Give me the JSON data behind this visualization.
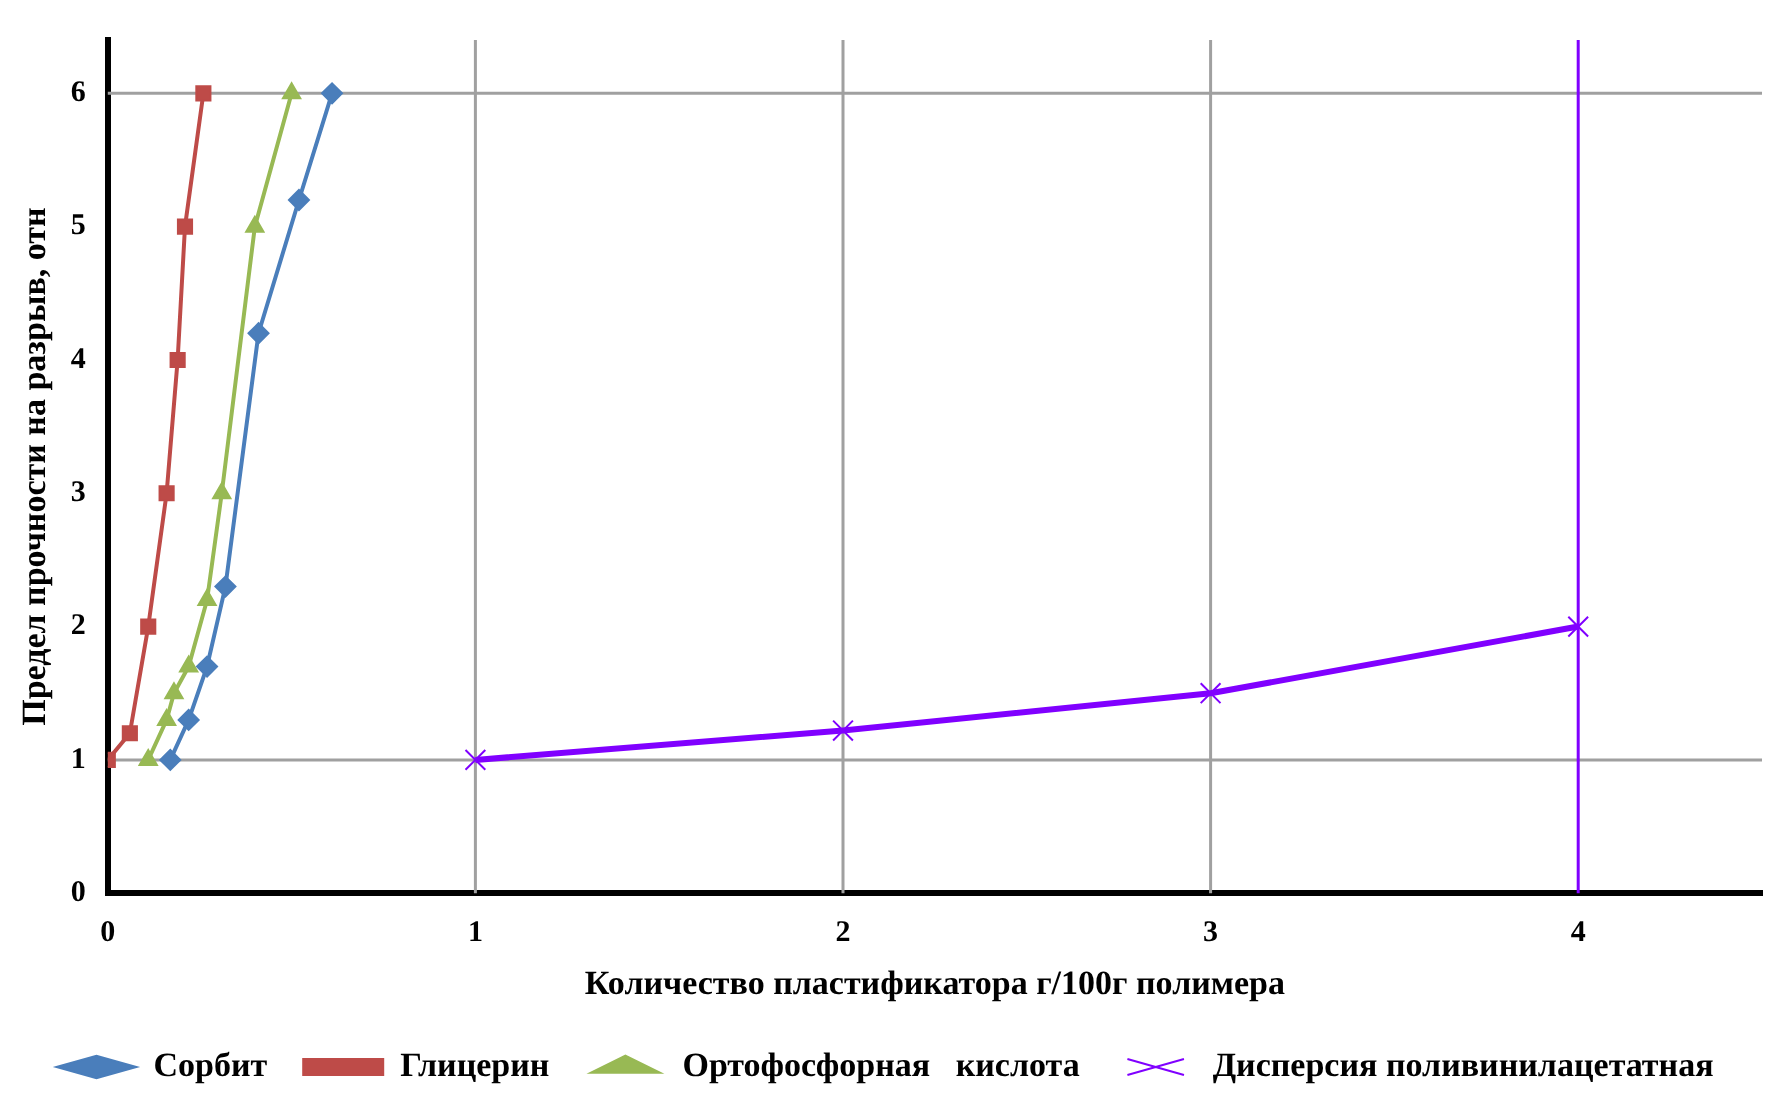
{
  "chart_data": {
    "type": "line",
    "xlabel": "Количество пластификатора г/100г полимера",
    "ylabel": "Предел прочности на разрыв, отн",
    "xlim": [
      0,
      4.5
    ],
    "xticks": [
      0,
      1,
      2,
      3,
      4
    ],
    "ylim": [
      0,
      6.4
    ],
    "yticks": [
      0,
      1,
      2,
      3,
      4,
      5,
      6
    ],
    "grid": false,
    "legend": "bottom",
    "ref_lines": [
      {
        "axis": "y",
        "value": 1,
        "color": "#a0a0a0"
      },
      {
        "axis": "y",
        "value": 6,
        "color": "#a0a0a0"
      },
      {
        "axis": "x",
        "value": 1,
        "color": "#a0a0a0"
      },
      {
        "axis": "x",
        "value": 2,
        "color": "#a0a0a0"
      },
      {
        "axis": "x",
        "value": 3,
        "color": "#a0a0a0"
      },
      {
        "axis": "x",
        "value": 4,
        "color": "#8000ff"
      }
    ],
    "series": [
      {
        "name": "Сорбит",
        "color": "#4a7ebb",
        "marker": "diamond",
        "x": [
          0.17,
          0.22,
          0.27,
          0.32,
          0.41,
          0.52,
          0.61
        ],
        "values": [
          1.0,
          1.3,
          1.7,
          2.3,
          4.2,
          5.2,
          6.0
        ]
      },
      {
        "name": "Глицерин",
        "color": "#be4b48",
        "marker": "square",
        "x": [
          0,
          0.06,
          0.11,
          0.16,
          0.19,
          0.21,
          0.26
        ],
        "values": [
          1.0,
          1.2,
          2.0,
          3.0,
          4.0,
          5.0,
          6.0
        ]
      },
      {
        "name": "Ортофосфорная   кислота",
        "color": "#98b954",
        "marker": "triangle",
        "x": [
          0.11,
          0.16,
          0.18,
          0.22,
          0.27,
          0.31,
          0.4,
          0.5
        ],
        "values": [
          1.0,
          1.3,
          1.5,
          1.7,
          2.2,
          3.0,
          5.0,
          6.0
        ]
      },
      {
        "name": "Дисперсия поливинилацетатная",
        "color": "#8000ff",
        "marker": "cross",
        "x": [
          1,
          2,
          3,
          4
        ],
        "values": [
          1.0,
          1.22,
          1.5,
          2.0
        ]
      }
    ]
  }
}
